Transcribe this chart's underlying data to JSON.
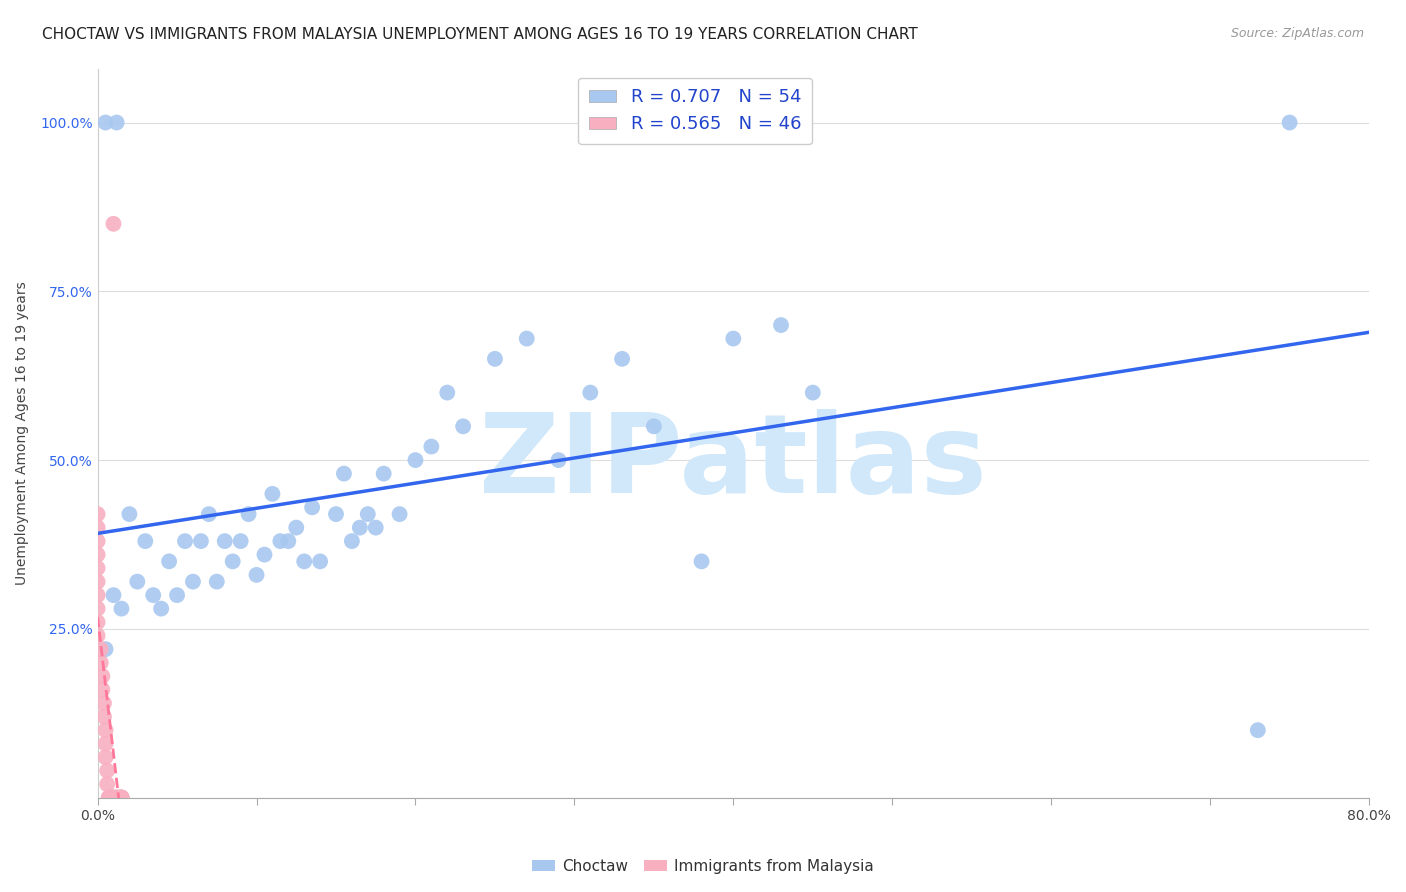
{
  "title": "CHOCTAW VS IMMIGRANTS FROM MALAYSIA UNEMPLOYMENT AMONG AGES 16 TO 19 YEARS CORRELATION CHART",
  "source": "Source: ZipAtlas.com",
  "ylabel": "Unemployment Among Ages 16 to 19 years",
  "ytick_labels": [
    "",
    "25.0%",
    "50.0%",
    "75.0%",
    "100.0%"
  ],
  "ytick_values": [
    0,
    0.25,
    0.5,
    0.75,
    1.0
  ],
  "xmin": 0.0,
  "xmax": 0.8,
  "ymin": 0.0,
  "ymax": 1.08,
  "legend_r1": "R = 0.707",
  "legend_n1": "N = 54",
  "legend_r2": "R = 0.565",
  "legend_n2": "N = 46",
  "choctaw_color": "#a8c8f0",
  "malaysia_color": "#f8b0c0",
  "choctaw_line_color": "#3366ee",
  "malaysia_line_color": "#ff7799",
  "watermark": "ZIPatlas",
  "watermark_color": "#d0e8fa",
  "title_fontsize": 11,
  "axis_label_fontsize": 10,
  "tick_fontsize": 10,
  "legend_fontsize": 13,
  "choctaw_x": [
    0.005,
    0.01,
    0.015,
    0.02,
    0.025,
    0.03,
    0.035,
    0.04,
    0.045,
    0.05,
    0.055,
    0.06,
    0.065,
    0.07,
    0.075,
    0.08,
    0.085,
    0.09,
    0.095,
    0.1,
    0.105,
    0.11,
    0.115,
    0.12,
    0.125,
    0.13,
    0.135,
    0.14,
    0.15,
    0.155,
    0.16,
    0.165,
    0.17,
    0.175,
    0.18,
    0.19,
    0.2,
    0.21,
    0.22,
    0.23,
    0.25,
    0.27,
    0.29,
    0.31,
    0.33,
    0.35,
    0.38,
    0.4,
    0.43,
    0.45,
    0.005,
    0.012,
    0.75,
    0.73
  ],
  "choctaw_y": [
    0.22,
    0.3,
    0.28,
    0.42,
    0.32,
    0.38,
    0.3,
    0.28,
    0.35,
    0.3,
    0.38,
    0.32,
    0.38,
    0.42,
    0.32,
    0.38,
    0.35,
    0.38,
    0.42,
    0.33,
    0.36,
    0.45,
    0.38,
    0.38,
    0.4,
    0.35,
    0.43,
    0.35,
    0.42,
    0.48,
    0.38,
    0.4,
    0.42,
    0.4,
    0.48,
    0.42,
    0.5,
    0.52,
    0.6,
    0.55,
    0.65,
    0.68,
    0.5,
    0.6,
    0.65,
    0.55,
    0.35,
    0.68,
    0.7,
    0.6,
    1.0,
    1.0,
    1.0,
    0.1
  ],
  "malaysia_x": [
    0.0,
    0.0,
    0.0,
    0.0,
    0.0,
    0.0,
    0.0,
    0.0,
    0.0,
    0.0,
    0.002,
    0.002,
    0.003,
    0.003,
    0.004,
    0.004,
    0.005,
    0.005,
    0.005,
    0.006,
    0.006,
    0.007,
    0.007,
    0.008,
    0.008,
    0.009,
    0.009,
    0.01,
    0.01,
    0.01,
    0.011,
    0.011,
    0.012,
    0.012,
    0.013,
    0.013,
    0.014,
    0.014,
    0.015,
    0.015,
    0.015,
    0.015,
    0.015,
    0.015,
    0.015,
    0.01
  ],
  "malaysia_y": [
    0.42,
    0.4,
    0.38,
    0.36,
    0.34,
    0.32,
    0.3,
    0.28,
    0.26,
    0.24,
    0.22,
    0.2,
    0.18,
    0.16,
    0.14,
    0.12,
    0.1,
    0.08,
    0.06,
    0.04,
    0.02,
    0.0,
    0.0,
    0.0,
    0.0,
    0.0,
    0.0,
    0.0,
    0.0,
    0.0,
    0.0,
    0.0,
    0.0,
    0.0,
    0.0,
    0.0,
    0.0,
    0.0,
    0.0,
    0.0,
    0.0,
    0.0,
    0.0,
    0.0,
    0.0,
    0.85
  ]
}
